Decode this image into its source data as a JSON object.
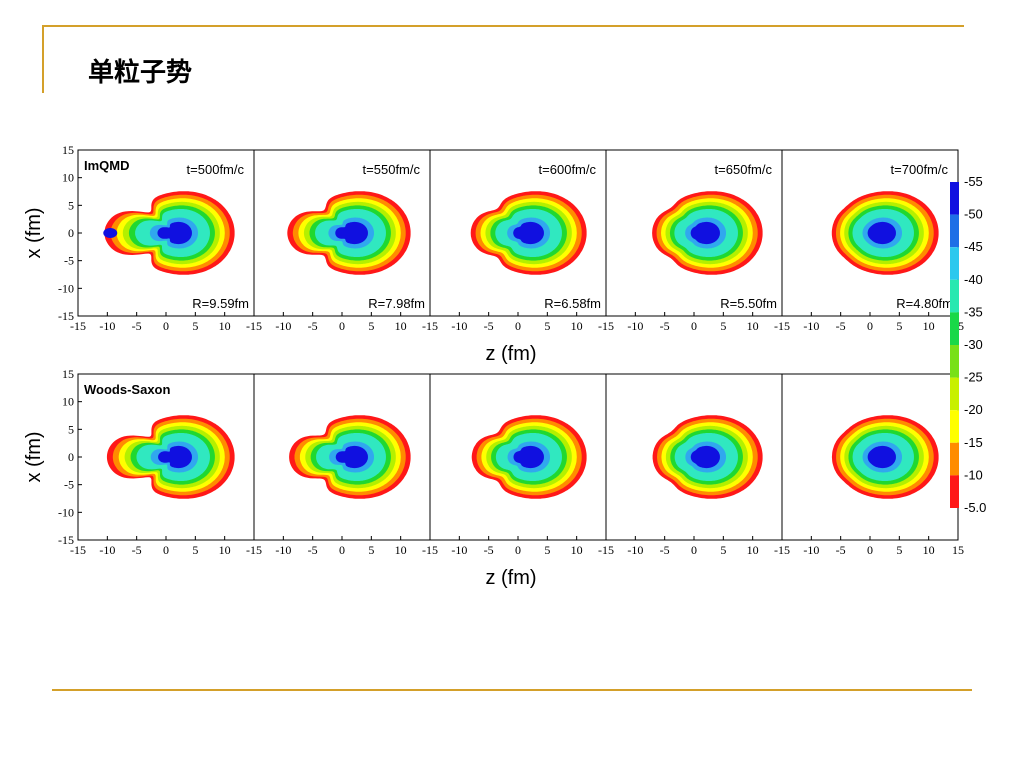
{
  "slide": {
    "title": "单粒子势"
  },
  "chart_data": {
    "type": "heatmap",
    "rows": [
      {
        "label": "ImQMD",
        "panels": [
          {
            "time": "t=500fm/c",
            "radius": "R=9.59fm"
          },
          {
            "time": "t=550fm/c",
            "radius": "R=7.98fm"
          },
          {
            "time": "t=600fm/c",
            "radius": "R=6.58fm"
          },
          {
            "time": "t=650fm/c",
            "radius": "R=5.50fm"
          },
          {
            "time": "t=700fm/c",
            "radius": "R=4.80fm"
          }
        ]
      },
      {
        "label": "Woods-Saxon",
        "panels": [
          {},
          {},
          {},
          {},
          {}
        ]
      }
    ],
    "xlabel": "z (fm)",
    "ylabel": "x (fm)",
    "xlim": [
      -15,
      15
    ],
    "ylim": [
      -15,
      15
    ],
    "x_ticks": [
      -15,
      -10,
      -5,
      0,
      5,
      10
    ],
    "x_ticks_last": [
      -15,
      -10,
      -5,
      0,
      5,
      10,
      15
    ],
    "y_ticks": [
      15,
      10,
      5,
      0,
      -5,
      -10,
      -15
    ],
    "neck_sizes": [
      1.0,
      0.72,
      0.42,
      0.2,
      0.05
    ],
    "colorbar": {
      "labels": [
        "-55",
        "-50",
        "-45",
        "-40",
        "-35",
        "-30",
        "-25",
        "-20",
        "-15",
        "-10",
        "-5.0"
      ],
      "colors": [
        "#1010e0",
        "#1e6fe6",
        "#2cc8ee",
        "#28e8b0",
        "#18d848",
        "#78e018",
        "#c8f000",
        "#ffff00",
        "#ff8c00",
        "#ff1818",
        "#ffffff"
      ]
    },
    "contour_colors": [
      "#ff1818",
      "#ff8c00",
      "#ffff00",
      "#b4f000",
      "#20d830",
      "#30e8c0",
      "#30a8ee",
      "#1010e0"
    ]
  }
}
